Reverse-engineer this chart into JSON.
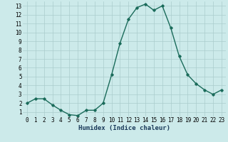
{
  "x": [
    0,
    1,
    2,
    3,
    4,
    5,
    6,
    7,
    8,
    9,
    10,
    11,
    12,
    13,
    14,
    15,
    16,
    17,
    18,
    19,
    20,
    21,
    22,
    23
  ],
  "y": [
    2,
    2.5,
    2.5,
    1.8,
    1.2,
    0.7,
    0.6,
    1.2,
    1.2,
    2.0,
    5.2,
    8.8,
    11.5,
    12.8,
    13.2,
    12.5,
    13.0,
    10.5,
    7.3,
    5.2,
    4.2,
    3.5,
    3.0,
    3.5
  ],
  "line_color": "#1a6b5a",
  "marker": "D",
  "marker_size": 1.8,
  "bg_color": "#cceaea",
  "grid_color": "#aacccc",
  "xlabel": "Humidex (Indice chaleur)",
  "ylim": [
    0.5,
    13.5
  ],
  "xlim": [
    -0.5,
    23.5
  ],
  "yticks": [
    1,
    2,
    3,
    4,
    5,
    6,
    7,
    8,
    9,
    10,
    11,
    12,
    13
  ],
  "xticks": [
    0,
    1,
    2,
    3,
    4,
    5,
    6,
    7,
    8,
    9,
    10,
    11,
    12,
    13,
    14,
    15,
    16,
    17,
    18,
    19,
    20,
    21,
    22,
    23
  ],
  "xlabel_fontsize": 6.5,
  "tick_fontsize": 5.5,
  "line_width": 1.0
}
